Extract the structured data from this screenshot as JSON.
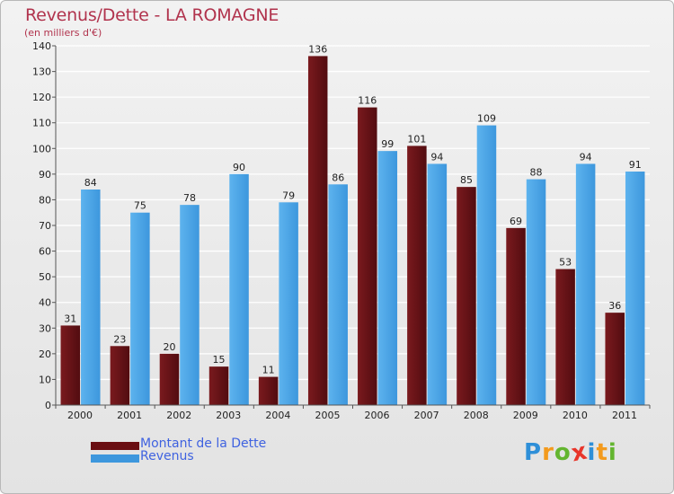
{
  "title": "Revenus/Dette - LA ROMAGNE",
  "subtitle": "(en milliers d'€)",
  "colors": {
    "dette": "#7a1a1e",
    "dette_dark": "#520c10",
    "revenus": "#3d97dd",
    "revenus_light": "#5db3ee",
    "axis_text": "#222222",
    "grid": "#ffffff"
  },
  "legend": [
    {
      "label": "Montant de la Dette",
      "color": "#6a0e12"
    },
    {
      "label": "Revenus",
      "color": "#3d97dd"
    }
  ],
  "logo": {
    "text": "Proxiti",
    "letters": [
      {
        "ch": "P",
        "color": "#2e8fd8"
      },
      {
        "ch": "r",
        "color": "#f39a1d"
      },
      {
        "ch": "o",
        "color": "#63b52f"
      },
      {
        "ch": "x",
        "color": "#e8352a"
      },
      {
        "ch": "i",
        "color": "#2e8fd8"
      },
      {
        "ch": "t",
        "color": "#f39a1d"
      },
      {
        "ch": "i",
        "color": "#63b52f"
      }
    ]
  },
  "chart_data": {
    "type": "bar",
    "categories": [
      "2000",
      "2001",
      "2002",
      "2003",
      "2004",
      "2005",
      "2006",
      "2007",
      "2008",
      "2009",
      "2010",
      "2011"
    ],
    "series": [
      {
        "name": "Montant de la Dette",
        "values": [
          31,
          23,
          20,
          15,
          11,
          136,
          116,
          101,
          85,
          69,
          53,
          36
        ]
      },
      {
        "name": "Revenus",
        "values": [
          84,
          75,
          78,
          90,
          79,
          86,
          99,
          94,
          109,
          88,
          94,
          91
        ]
      }
    ],
    "yticks": [
      0,
      10,
      20,
      30,
      40,
      50,
      60,
      70,
      80,
      90,
      100,
      110,
      120,
      130,
      140
    ],
    "ylim": [
      0,
      140
    ],
    "grid": true,
    "legend_position": "bottom-left"
  }
}
